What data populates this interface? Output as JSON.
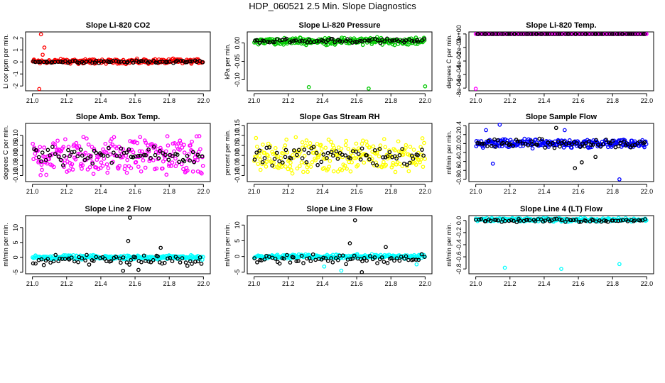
{
  "figure": {
    "title": "HDP_060521  2.5 Min. Slope Diagnostics"
  },
  "chart_data": [
    {
      "type": "scatter",
      "title": "Slope Li-820 CO2",
      "ylabel": "Li cor ppm per min.",
      "xlim": [
        20.96,
        22.04
      ],
      "ylim": [
        -2.4,
        2.5
      ],
      "xticks": [
        21.0,
        21.2,
        21.4,
        21.6,
        21.8,
        22.0
      ],
      "xtick_labels": [
        "21.0",
        "21.2",
        "21.4",
        "21.6",
        "21.8",
        "22.0"
      ],
      "yticks": [
        -2,
        -1,
        0,
        1,
        2
      ],
      "ytick_labels": [
        "-2",
        "-1",
        "0",
        "1",
        "2"
      ],
      "grid": false,
      "colors": {
        "main": "#ff0000",
        "overlay": "#000000"
      },
      "series": [
        {
          "role": "main",
          "color": "#ff0000",
          "band": {
            "center": 0.05,
            "spread": 0.25
          },
          "outliers": [
            [
              21.05,
              2.3
            ],
            [
              21.07,
              1.2
            ],
            [
              21.04,
              -2.25
            ],
            [
              21.06,
              0.6
            ]
          ]
        },
        {
          "role": "overlay",
          "color": "#000000",
          "band": {
            "center": 0.02,
            "spread": 0.12
          }
        }
      ]
    },
    {
      "type": "scatter",
      "title": "Slope Li-820 Pressure",
      "ylabel": "kPa per min.",
      "xlim": [
        20.96,
        22.04
      ],
      "ylim": [
        -0.13,
        0.03
      ],
      "xticks": [
        21.0,
        21.2,
        21.4,
        21.6,
        21.8,
        22.0
      ],
      "xtick_labels": [
        "21.0",
        "21.2",
        "21.4",
        "21.6",
        "21.8",
        "22.0"
      ],
      "yticks": [
        -0.1,
        -0.05,
        0.0
      ],
      "ytick_labels": [
        "-0.10",
        "-0.05",
        "0.00"
      ],
      "grid": false,
      "colors": {
        "main": "#00c800",
        "overlay": "#000000"
      },
      "series": [
        {
          "role": "main",
          "color": "#00c800",
          "band": {
            "center": 0.005,
            "spread": 0.012
          },
          "outliers": [
            [
              21.32,
              -0.12
            ],
            [
              21.67,
              -0.124
            ],
            [
              22.0,
              -0.118
            ]
          ]
        },
        {
          "role": "overlay",
          "color": "#000000",
          "band": {
            "center": 0.006,
            "spread": 0.007
          }
        }
      ]
    },
    {
      "type": "scatter",
      "title": "Slope Li-820 Temp.",
      "ylabel": "degrees C per min.",
      "xlim": [
        20.96,
        22.04
      ],
      "ylim": [
        -0.00084,
        3e-05
      ],
      "xticks": [
        21.0,
        21.2,
        21.4,
        21.6,
        21.8,
        22.0
      ],
      "xtick_labels": [
        "21.0",
        "21.2",
        "21.4",
        "21.6",
        "21.8",
        "22.0"
      ],
      "yticks": [
        -0.0008,
        -0.0006,
        -0.0004,
        -0.0002,
        0.0
      ],
      "ytick_labels": [
        "-8e-04",
        "-6e-04",
        "-4e-04",
        "-2e-04",
        "0e+00"
      ],
      "grid": false,
      "colors": {
        "main": "#ff00ff",
        "overlay": "#000000"
      },
      "series": [
        {
          "role": "main",
          "color": "#ff00ff",
          "band": {
            "center": 0.0,
            "spread": 0.0
          },
          "outliers": [
            [
              21.0,
              -0.00081
            ]
          ]
        },
        {
          "role": "overlay",
          "color": "#000000",
          "band": {
            "center": 0.0,
            "spread": 0.0
          }
        }
      ]
    },
    {
      "type": "scatter",
      "title": "Slope Amb. Box Temp.",
      "ylabel": "degrees C per min.",
      "xlim": [
        20.96,
        22.04
      ],
      "ylim": [
        -0.13,
        0.16
      ],
      "xticks": [
        21.0,
        21.2,
        21.4,
        21.6,
        21.8,
        22.0
      ],
      "xtick_labels": [
        "21.0",
        "21.2",
        "21.4",
        "21.6",
        "21.8",
        "22.0"
      ],
      "yticks": [
        -0.1,
        -0.05,
        0.0,
        0.05,
        0.1
      ],
      "ytick_labels": [
        "-0.10",
        "-0.05",
        "0.00",
        "0.05",
        "0.10"
      ],
      "grid": false,
      "colors": {
        "main": "#ff00ff",
        "overlay": "#000000"
      },
      "series": [
        {
          "role": "main",
          "color": "#ff00ff",
          "band": {
            "center": 0.0,
            "spread": 0.11
          }
        },
        {
          "role": "overlay",
          "color": "#000000",
          "band": {
            "center": 0.0,
            "spread": 0.055
          }
        }
      ]
    },
    {
      "type": "scatter",
      "title": "Slope Gas Stream RH",
      "ylabel": "percent per min.",
      "xlim": [
        20.96,
        22.04
      ],
      "ylim": [
        -0.13,
        0.16
      ],
      "xticks": [
        21.0,
        21.2,
        21.4,
        21.6,
        21.8,
        22.0
      ],
      "xtick_labels": [
        "21.0",
        "21.2",
        "21.4",
        "21.6",
        "21.8",
        "22.0"
      ],
      "yticks": [
        -0.1,
        -0.05,
        0.0,
        0.05,
        0.1,
        0.15
      ],
      "ytick_labels": [
        "-0.10",
        "-0.05",
        "0.00",
        "0.05",
        "0.10",
        "0.15"
      ],
      "grid": false,
      "colors": {
        "main": "#ffff00",
        "overlay": "#000000"
      },
      "series": [
        {
          "role": "main",
          "color": "#ffff00",
          "band": {
            "center": 0.0,
            "spread": 0.1
          }
        },
        {
          "role": "overlay",
          "color": "#000000",
          "band": {
            "center": 0.0,
            "spread": 0.06
          }
        }
      ]
    },
    {
      "type": "scatter",
      "title": "Slope Sample Flow",
      "ylabel": "ml/min per min.",
      "xlim": [
        20.96,
        22.04
      ],
      "ylim": [
        -0.85,
        0.45
      ],
      "xticks": [
        21.0,
        21.2,
        21.4,
        21.6,
        21.8,
        22.0
      ],
      "xtick_labels": [
        "21.0",
        "21.2",
        "21.4",
        "21.6",
        "21.8",
        "22.0"
      ],
      "yticks": [
        -0.8,
        -0.6,
        -0.4,
        -0.2,
        0.0,
        0.2,
        0.4
      ],
      "ytick_labels": [
        "-0.8",
        "-0.6",
        "-0.4",
        "-0.2",
        "0.0",
        "0.2",
        "0.4"
      ],
      "grid": false,
      "colors": {
        "main": "#0000ff",
        "overlay": "#000000"
      },
      "series": [
        {
          "role": "main",
          "color": "#0000ff",
          "band": {
            "center": 0.0,
            "spread": 0.12
          },
          "outliers": [
            [
              21.14,
              0.42
            ],
            [
              21.06,
              0.3
            ],
            [
              21.84,
              -0.8
            ],
            [
              21.1,
              -0.45
            ],
            [
              21.52,
              0.3
            ]
          ]
        },
        {
          "role": "overlay",
          "color": "#000000",
          "band": {
            "center": 0.0,
            "spread": 0.12
          },
          "outliers": [
            [
              21.58,
              -0.55
            ],
            [
              21.62,
              -0.42
            ],
            [
              21.7,
              -0.3
            ],
            [
              21.47,
              0.35
            ]
          ]
        }
      ]
    },
    {
      "type": "scatter",
      "title": "Slope Line 2 Flow",
      "ylabel": "ml/min per min.",
      "xlim": [
        20.96,
        22.04
      ],
      "ylim": [
        -5.5,
        14
      ],
      "xticks": [
        21.0,
        21.2,
        21.4,
        21.6,
        21.8,
        22.0
      ],
      "xtick_labels": [
        "21.0",
        "21.2",
        "21.4",
        "21.6",
        "21.8",
        "22.0"
      ],
      "yticks": [
        -5,
        0,
        5,
        10
      ],
      "ytick_labels": [
        "-5",
        "0",
        "5",
        "10"
      ],
      "grid": false,
      "colors": {
        "main": "#00ffff",
        "overlay": "#000000"
      },
      "series": [
        {
          "role": "main",
          "color": "#00ffff",
          "band": {
            "center": 0.0,
            "spread": 0.8
          }
        },
        {
          "role": "overlay",
          "color": "#000000",
          "band": {
            "center": -1.0,
            "spread": 2.2
          },
          "outliers": [
            [
              21.57,
              13.3
            ],
            [
              21.56,
              5.5
            ],
            [
              21.53,
              -4.5
            ],
            [
              21.62,
              -4.2
            ],
            [
              21.75,
              3.2
            ]
          ]
        }
      ]
    },
    {
      "type": "scatter",
      "title": "Slope Line 3 Flow",
      "ylabel": "ml/min per min.",
      "xlim": [
        20.96,
        22.04
      ],
      "ylim": [
        -5.5,
        13
      ],
      "xticks": [
        21.0,
        21.2,
        21.4,
        21.6,
        21.8,
        22.0
      ],
      "xtick_labels": [
        "21.0",
        "21.2",
        "21.4",
        "21.6",
        "21.8",
        "22.0"
      ],
      "yticks": [
        -5,
        0,
        5,
        10
      ],
      "ytick_labels": [
        "-5",
        "0",
        "5",
        "10"
      ],
      "grid": false,
      "colors": {
        "main": "#00ffff",
        "overlay": "#000000"
      },
      "series": [
        {
          "role": "main",
          "color": "#00ffff",
          "band": {
            "center": 0.0,
            "spread": 0.8
          },
          "outliers": [
            [
              21.51,
              -4.5
            ],
            [
              21.41,
              -3.2
            ],
            [
              21.95,
              -2.5
            ]
          ]
        },
        {
          "role": "overlay",
          "color": "#000000",
          "band": {
            "center": -1.0,
            "spread": 2.0
          },
          "outliers": [
            [
              21.59,
              11.5
            ],
            [
              21.56,
              4.2
            ],
            [
              21.63,
              -5.0
            ],
            [
              21.77,
              3.0
            ]
          ]
        }
      ]
    },
    {
      "type": "scatter",
      "title": "Slope Line 4 (LT) Flow",
      "ylabel": "ml/min per min.",
      "xlim": [
        20.96,
        22.04
      ],
      "ylim": [
        -0.88,
        0.08
      ],
      "xticks": [
        21.0,
        21.2,
        21.4,
        21.6,
        21.8,
        22.0
      ],
      "xtick_labels": [
        "21.0",
        "21.2",
        "21.4",
        "21.6",
        "21.8",
        "22.0"
      ],
      "yticks": [
        -0.8,
        -0.6,
        -0.4,
        -0.2,
        0.0
      ],
      "ytick_labels": [
        "-0.8",
        "-0.6",
        "-0.4",
        "-0.2",
        "0.0"
      ],
      "grid": false,
      "colors": {
        "main": "#00ffff",
        "overlay": "#000000"
      },
      "series": [
        {
          "role": "main",
          "color": "#00ffff",
          "band": {
            "center": 0.01,
            "spread": 0.035
          },
          "outliers": [
            [
              21.17,
              -0.78
            ],
            [
              21.5,
              -0.8
            ],
            [
              21.84,
              -0.72
            ]
          ]
        },
        {
          "role": "overlay",
          "color": "#000000",
          "band": {
            "center": 0.0,
            "spread": 0.03
          }
        }
      ]
    }
  ]
}
